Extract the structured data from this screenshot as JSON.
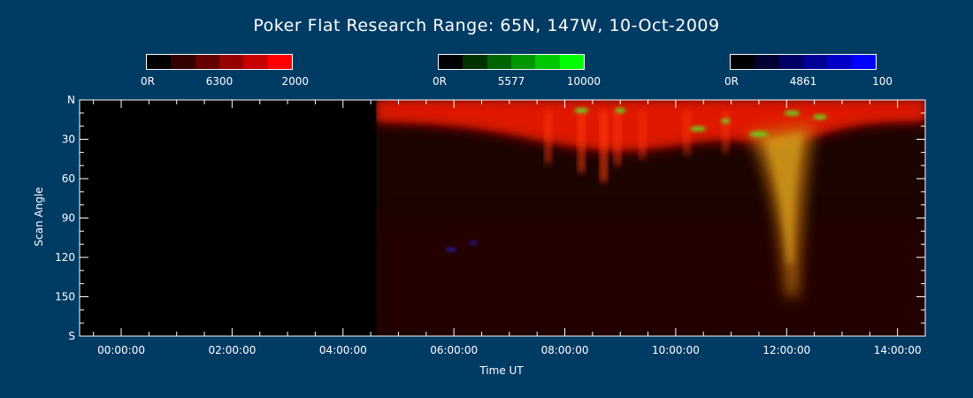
{
  "chart_data": {
    "type": "heatmap",
    "title": "Poker Flat Research Range: 65N, 147W, 10-Oct-2009",
    "xlabel": "Time UT",
    "ylabel": "Scan Angle",
    "x_ticks": [
      "00:00:00",
      "02:00:00",
      "04:00:00",
      "06:00:00",
      "08:00:00",
      "10:00:00",
      "12:00:00",
      "14:00:00"
    ],
    "x_tick_hours": [
      0,
      2,
      4,
      6,
      8,
      10,
      12,
      14
    ],
    "xlim_hours": [
      -0.75,
      14.5
    ],
    "y_ticks": [
      "N",
      "30",
      "60",
      "90",
      "120",
      "150",
      "S"
    ],
    "y_tick_values": [
      0,
      30,
      60,
      90,
      120,
      150,
      180
    ],
    "ylim": [
      0,
      180
    ],
    "data_start_hour": 4.6,
    "colorbars": [
      {
        "wavelength": "6300",
        "min_label": "0R",
        "max_label": "2000",
        "colors": [
          "#000000",
          "#320000",
          "#640000",
          "#960000",
          "#c80000",
          "#ff0000"
        ]
      },
      {
        "wavelength": "5577",
        "min_label": "0R",
        "max_label": "10000",
        "colors": [
          "#000000",
          "#003200",
          "#006400",
          "#009600",
          "#00c800",
          "#00ff00"
        ]
      },
      {
        "wavelength": "4861",
        "min_label": "0R",
        "max_label": "100",
        "colors": [
          "#000000",
          "#000032",
          "#000064",
          "#000096",
          "#0000c8",
          "#0000ff"
        ]
      }
    ],
    "features": [
      {
        "name": "red-oval",
        "t_start": 4.6,
        "t_end": 14.5,
        "scan_angle": 20
      },
      {
        "name": "green-arcs",
        "t_start": 8.0,
        "t_end": 13.0,
        "scan_angle": 10
      },
      {
        "name": "equatorward-surge",
        "t_start": 11.2,
        "t_end": 12.6,
        "scan_angle": 150
      }
    ]
  }
}
